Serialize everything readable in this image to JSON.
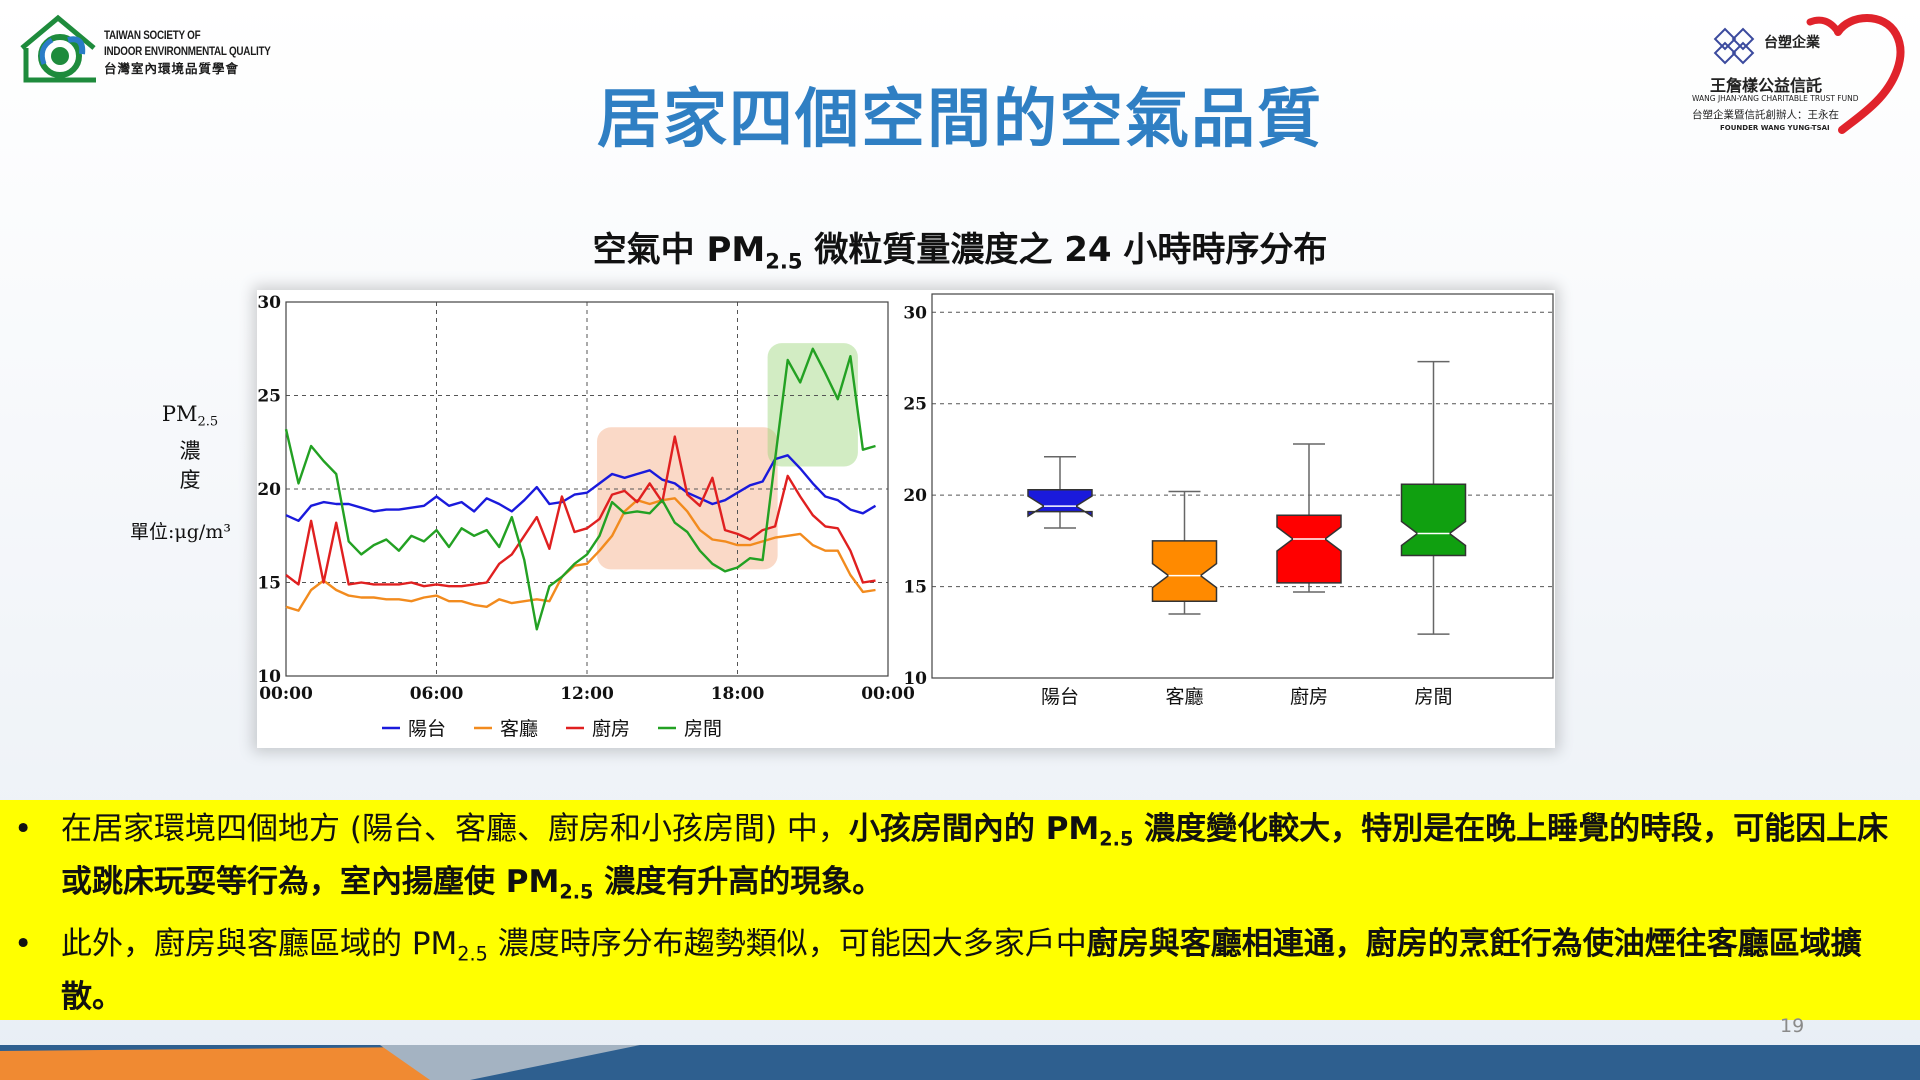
{
  "header": {
    "left_logo": {
      "line1": "TAIWAN SOCIETY OF",
      "line2": "INDOOR ENVIRONMENTAL QUALITY",
      "line3": "台灣室內環境品質學會"
    },
    "right_logo": {
      "brand": "台塑企業",
      "name": "王詹樣公益信託",
      "english": "WANG JHAN-YANG CHARITABLE TRUST FUND",
      "founder_zh": "台塑企業暨信託創辦人：王永在",
      "founder_en": "FOUNDER WANG YUNG-TSAI"
    },
    "title": "居家四個空間的空氣品質"
  },
  "chart": {
    "title_pre": "空氣中 PM",
    "title_sub": "2.5",
    "title_post": " 微粒質量濃度之 24 小時時序分布",
    "ylabel_pm": "PM",
    "ylabel_sub": "2.5",
    "ylabel_line2": "濃",
    "ylabel_line3": "度",
    "unit": "單位:μg/m³"
  },
  "chart_data": [
    {
      "type": "line",
      "x_ticks": [
        "00:00",
        "06:00",
        "12:00",
        "18:00",
        "00:00"
      ],
      "ylim": [
        10,
        30
      ],
      "y_ticks": [
        10,
        15,
        20,
        25,
        30
      ],
      "grid": true,
      "legend_position": "bottom",
      "x_hours": [
        0,
        0.5,
        1,
        1.5,
        2,
        2.5,
        3,
        3.5,
        4,
        4.5,
        5,
        5.5,
        6,
        6.5,
        7,
        7.5,
        8,
        8.5,
        9,
        9.5,
        10,
        10.5,
        11,
        11.5,
        12,
        12.5,
        13,
        13.5,
        14,
        14.5,
        15,
        15.5,
        16,
        16.5,
        17,
        17.5,
        18,
        18.5,
        19,
        19.5,
        20,
        20.5,
        21,
        21.5,
        22,
        22.5,
        23,
        23.5
      ],
      "series": [
        {
          "name": "陽台",
          "color": "#1a1adc",
          "values": [
            18.6,
            18.3,
            19.1,
            19.3,
            19.2,
            19.2,
            19.0,
            18.8,
            18.9,
            18.9,
            19.0,
            19.1,
            19.6,
            19.1,
            19.3,
            18.8,
            19.5,
            19.2,
            18.8,
            19.4,
            20.1,
            19.2,
            19.3,
            19.7,
            19.8,
            20.3,
            20.8,
            20.6,
            20.8,
            21.0,
            20.5,
            20.3,
            19.8,
            19.5,
            19.2,
            19.4,
            19.8,
            20.2,
            20.4,
            21.6,
            21.8,
            21.1,
            20.3,
            19.6,
            19.4,
            18.9,
            18.7,
            19.1
          ]
        },
        {
          "name": "客廳",
          "color": "#f28b1e",
          "values": [
            13.7,
            13.5,
            14.6,
            15.1,
            14.6,
            14.3,
            14.2,
            14.2,
            14.1,
            14.1,
            14.0,
            14.2,
            14.3,
            14.0,
            14.0,
            13.8,
            13.7,
            14.1,
            13.9,
            14.0,
            14.1,
            14.0,
            15.3,
            15.9,
            16.0,
            16.7,
            17.5,
            18.8,
            19.4,
            19.2,
            19.4,
            19.5,
            18.8,
            17.8,
            17.3,
            17.2,
            17.0,
            17.0,
            17.2,
            17.4,
            17.5,
            17.6,
            17.0,
            16.7,
            16.7,
            15.4,
            14.5,
            14.6
          ]
        },
        {
          "name": "廚房",
          "color": "#e02020",
          "values": [
            15.4,
            14.9,
            18.3,
            15.0,
            18.2,
            14.9,
            15.0,
            14.9,
            14.9,
            14.9,
            15.0,
            14.8,
            14.9,
            14.8,
            14.8,
            14.9,
            15.0,
            16.0,
            16.5,
            17.5,
            18.5,
            16.8,
            19.6,
            17.7,
            17.9,
            18.4,
            19.7,
            19.9,
            19.3,
            20.3,
            19.3,
            22.8,
            19.7,
            19.1,
            20.6,
            17.8,
            17.6,
            17.3,
            17.8,
            18.0,
            20.7,
            19.6,
            18.6,
            18.0,
            17.9,
            16.7,
            15.0,
            15.1
          ]
        },
        {
          "name": "房間",
          "color": "#23a123",
          "values": [
            23.2,
            20.3,
            22.3,
            21.5,
            20.8,
            17.2,
            16.5,
            17.0,
            17.3,
            16.7,
            17.5,
            17.2,
            17.8,
            16.9,
            17.9,
            17.5,
            17.8,
            16.9,
            18.5,
            16.2,
            12.5,
            14.8,
            15.3,
            16.0,
            16.5,
            17.5,
            19.3,
            18.7,
            18.8,
            18.7,
            19.4,
            18.2,
            17.7,
            16.7,
            16.0,
            15.6,
            15.8,
            16.3,
            16.2,
            21.6,
            26.9,
            25.7,
            27.5,
            26.2,
            24.8,
            27.1,
            22.1,
            22.3
          ]
        }
      ]
    },
    {
      "type": "box",
      "categories": [
        "陽台",
        "客廳",
        "廚房",
        "房間"
      ],
      "ylim": [
        10,
        31
      ],
      "y_ticks": [
        10,
        15,
        20,
        25,
        30
      ],
      "grid": true,
      "boxes": [
        {
          "name": "陽台",
          "color": "#1a1adc",
          "min": 18.2,
          "q1": 19.1,
          "median": 19.4,
          "q3": 20.3,
          "max": 22.1
        },
        {
          "name": "客廳",
          "color": "#ff8a00",
          "min": 13.5,
          "q1": 14.2,
          "median": 15.6,
          "q3": 17.5,
          "max": 20.2
        },
        {
          "name": "廚房",
          "color": "#ff0000",
          "min": 14.7,
          "q1": 15.2,
          "median": 17.6,
          "q3": 18.9,
          "max": 22.8
        },
        {
          "name": "房間",
          "color": "#10a010",
          "min": 12.4,
          "q1": 16.7,
          "median": 17.9,
          "q3": 20.6,
          "max": 27.3
        }
      ]
    }
  ],
  "bullets": [
    {
      "plain1": "在居家環境四個地方 (陽台、客廳、廚房和小孩房間) 中，",
      "bold1": "小孩房間內的 PM",
      "bold1_sub": "2.5",
      "bold2": " 濃度變化較大，特別是在晚上睡覺的時段，可能因上床或跳床玩耍等行為，室內揚塵使 PM",
      "bold2_sub": "2.5",
      "bold3": " 濃度有升高的現象。"
    },
    {
      "plain1": "此外，廚房與客廳區域的 PM",
      "plain1_sub": "2.5",
      "plain2": " 濃度時序分布趨勢類似，可能因大多家戶中",
      "bold1": "廚房與客廳相連通，廚房的烹飪行為使油煙往客廳區域擴散。"
    }
  ],
  "page_number": "19"
}
